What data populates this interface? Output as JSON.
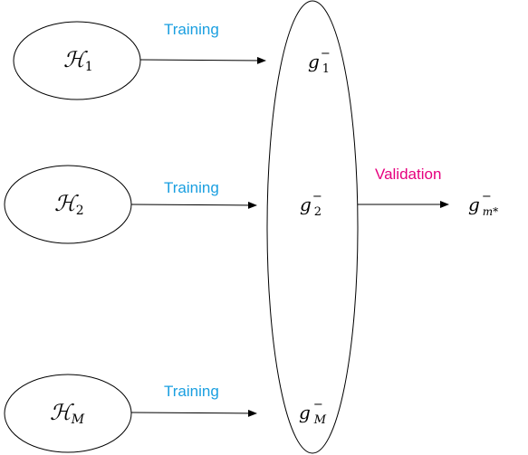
{
  "hypotheses": [
    {
      "symbol": "ℋ",
      "subscript": "1"
    },
    {
      "symbol": "ℋ",
      "subscript": "2"
    },
    {
      "symbol": "ℋ",
      "subscript": "M"
    }
  ],
  "training_label": "Training",
  "validation_label": "Validation",
  "final_hypotheses": [
    {
      "symbol": "g",
      "superscript": "−",
      "subscript": "1"
    },
    {
      "symbol": "g",
      "superscript": "−",
      "subscript": "2"
    },
    {
      "symbol": "g",
      "superscript": "−",
      "subscript": "M"
    }
  ],
  "selected": {
    "symbol": "g",
    "superscript": "−",
    "subscript": "m*"
  }
}
